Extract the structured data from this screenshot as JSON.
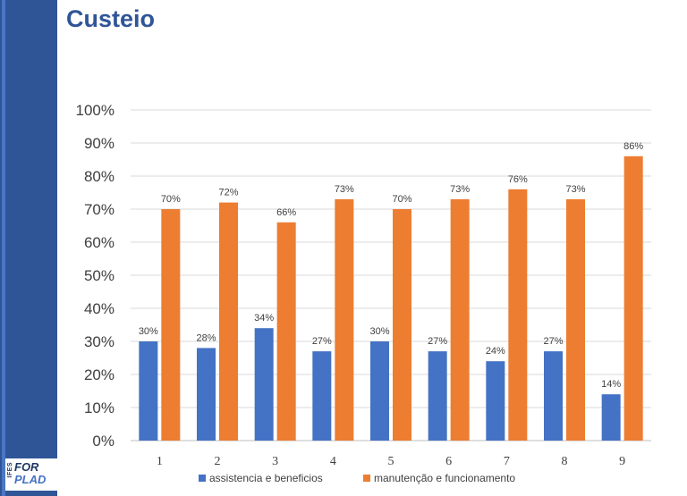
{
  "page": {
    "title": "Custeio"
  },
  "logo": {
    "line1": "FOR",
    "line2": "PLAD",
    "small": "IFES"
  },
  "colors": {
    "sidebar": "#2f5597",
    "series1": "#4472c4",
    "series2": "#ed7d31",
    "title": "#2f5597"
  },
  "chart_data": {
    "type": "bar",
    "categories": [
      "1",
      "2",
      "3",
      "4",
      "5",
      "6",
      "7",
      "8",
      "9"
    ],
    "series": [
      {
        "name": "assistencia e beneficios",
        "values": [
          30,
          28,
          34,
          27,
          30,
          27,
          24,
          27,
          14
        ],
        "labels": [
          "30%",
          "28%",
          "34%",
          "27%",
          "30%",
          "27%",
          "24%",
          "27%",
          "14%"
        ]
      },
      {
        "name": "manutenção e funcionamento",
        "values": [
          70,
          72,
          66,
          73,
          70,
          73,
          76,
          73,
          86
        ],
        "labels": [
          "70%",
          "72%",
          "66%",
          "73%",
          "70%",
          "73%",
          "76%",
          "73%",
          "86%"
        ]
      }
    ],
    "yticks": [
      "0%",
      "10%",
      "20%",
      "30%",
      "40%",
      "50%",
      "60%",
      "70%",
      "80%",
      "90%",
      "100%"
    ],
    "ylim": [
      0,
      100
    ],
    "grid": true,
    "legend": "bottom"
  }
}
